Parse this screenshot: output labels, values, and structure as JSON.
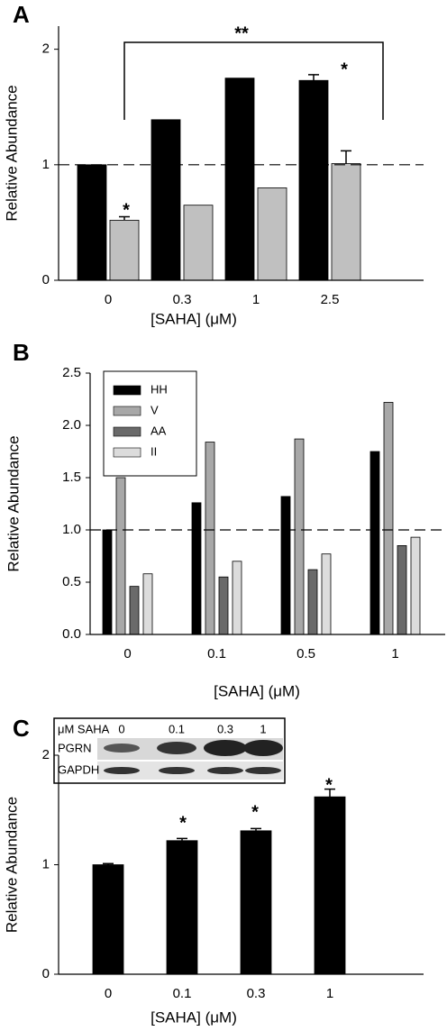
{
  "chart_data": [
    {
      "type": "bar",
      "panel_label": "A",
      "xlabel": "[SAHA] (μM)",
      "ylabel": "Relative Abundance",
      "categories": [
        "0",
        "0.3",
        "1",
        "2.5"
      ],
      "series": [
        {
          "color": "#000000",
          "values": [
            1.0,
            1.39,
            1.75,
            1.73
          ],
          "errors": [
            null,
            null,
            null,
            0.05
          ]
        },
        {
          "color": "#c0c0c0",
          "values": [
            0.52,
            0.65,
            0.8,
            1.01
          ],
          "errors": [
            0.03,
            null,
            null,
            0.11
          ]
        }
      ],
      "ylim": [
        0,
        2.2
      ],
      "yticks": [
        0,
        1,
        2
      ],
      "reference_line": 1,
      "annotations": [
        "*",
        "*",
        "**"
      ]
    },
    {
      "type": "bar",
      "panel_label": "B",
      "xlabel": "[SAHA] (μM)",
      "ylabel": "Relative Abundance",
      "categories": [
        "0",
        "0.1",
        "0.5",
        "1"
      ],
      "series": [
        {
          "name": "HH",
          "color": "#000000",
          "values": [
            1.0,
            1.26,
            1.32,
            1.75
          ]
        },
        {
          "name": "V",
          "color": "#a8a8a8",
          "values": [
            1.5,
            1.84,
            1.87,
            2.22
          ]
        },
        {
          "name": "AA",
          "color": "#6a6a6a",
          "values": [
            0.46,
            0.55,
            0.62,
            0.85
          ]
        },
        {
          "name": "II",
          "color": "#dcdcdc",
          "values": [
            0.58,
            0.7,
            0.77,
            0.93
          ]
        }
      ],
      "ylim": [
        0,
        2.5
      ],
      "yticks": [
        {
          "value": 0,
          "label": "0.0"
        },
        {
          "value": 0.5,
          "label": "0.5"
        },
        {
          "value": 1,
          "label": "1.0"
        },
        {
          "value": 1.5,
          "label": "1.5"
        },
        {
          "value": 2,
          "label": "2.0"
        },
        {
          "value": 2.5,
          "label": "2.5"
        }
      ],
      "reference_line": 1,
      "legend": "upper left"
    },
    {
      "type": "bar",
      "panel_label": "C",
      "xlabel": "[SAHA] (μM)",
      "ylabel": "Relative Abundance",
      "categories": [
        "0",
        "0.1",
        "0.3",
        "1"
      ],
      "series": [
        {
          "color": "#000000",
          "values": [
            1.0,
            1.22,
            1.31,
            1.62
          ],
          "errors": [
            0.01,
            0.02,
            0.02,
            0.07
          ]
        }
      ],
      "ylim": [
        0,
        2
      ],
      "yticks": [
        0,
        1,
        2
      ],
      "annotations": [
        "*",
        "*",
        "*"
      ],
      "inset": {
        "header": "μM SAHA",
        "lanes": [
          "0",
          "0.1",
          "0.3",
          "1"
        ],
        "rows": [
          "PGRN",
          "GAPDH"
        ]
      }
    }
  ]
}
